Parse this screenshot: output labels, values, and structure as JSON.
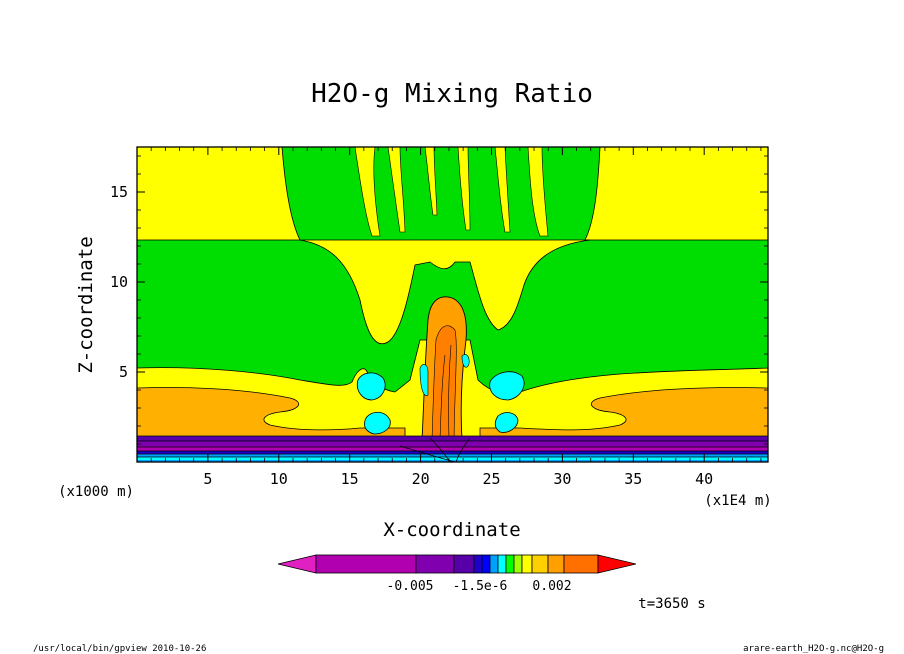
{
  "chart_data": {
    "type": "heatmap",
    "title": "H2O-g Mixing Ratio",
    "xlabel": "X-coordinate",
    "ylabel": "Z-coordinate",
    "x_unit": "(x1E4 m)",
    "y_unit": "(x1000 m)",
    "x_ticks": [
      "5",
      "10",
      "15",
      "20",
      "25",
      "30",
      "35",
      "40"
    ],
    "y_ticks": [
      "5",
      "10",
      "15"
    ],
    "xlim": [
      0,
      44.5
    ],
    "ylim": [
      0,
      17.5
    ],
    "grid": false,
    "colorbar": {
      "colors": [
        "#e020c0",
        "#b000b0",
        "#8000b0",
        "#5800a8",
        "#2000c8",
        "#0000ff",
        "#00a0ff",
        "#00ffff",
        "#00ff00",
        "#a0ff00",
        "#ffff00",
        "#ffd000",
        "#ffa000",
        "#ff7000",
        "#ff0000"
      ],
      "tick_labels": [
        "-0.005",
        "-1.5e-6",
        "0.002"
      ]
    },
    "time_label": "t=3650 s"
  },
  "footer": {
    "left": "/usr/local/bin/gpview  2010-10-26",
    "right": "arare-earth_H2O-g.nc@H2O-g"
  }
}
